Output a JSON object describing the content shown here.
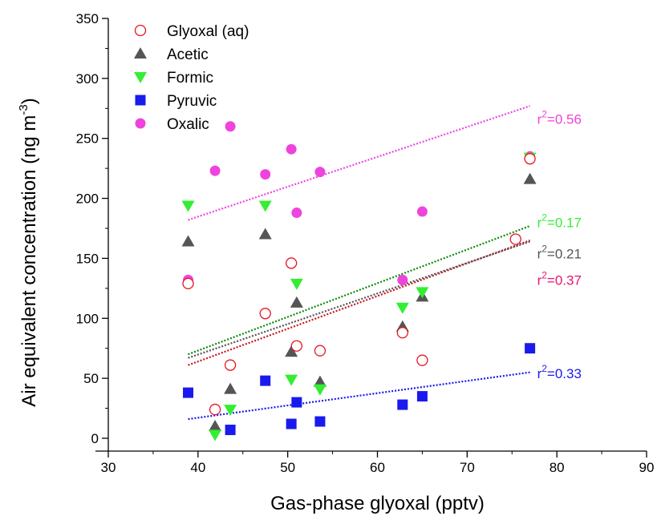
{
  "chart_data": {
    "type": "scatter",
    "xlabel": "Gas-phase glyoxal (pptv)",
    "ylabel": "Air equivalent concentration (ng m",
    "ylabel_sup": "-3",
    "ylabel_tail": ")",
    "xlim": [
      30,
      90
    ],
    "ylim": [
      0,
      350
    ],
    "xticks": [
      30,
      40,
      50,
      60,
      70,
      80,
      90
    ],
    "yticks": [
      0,
      50,
      100,
      150,
      200,
      250,
      300,
      350
    ],
    "grid": false,
    "legend_position": "top-left",
    "series": [
      {
        "name": "Glyoxal (aq)",
        "marker": "open-circle",
        "color": "#e8141e",
        "x": [
          38.9,
          41.9,
          43.6,
          47.5,
          50.4,
          51.0,
          53.6,
          62.8,
          65.0,
          75.4,
          77.0
        ],
        "y": [
          129,
          24,
          61,
          104,
          146,
          77,
          73,
          88,
          65,
          166,
          233
        ],
        "fit": {
          "x": [
            38.9,
            77.0
          ],
          "y": [
            61,
            165
          ],
          "color": "#c8141e",
          "r2_prefix": "r",
          "r2_sup": "2",
          "r2_text": "=0.37",
          "label_color": "#e8146e",
          "label_x": 77.8,
          "label_y": 128
        }
      },
      {
        "name": "Acetic",
        "marker": "triangle-up",
        "color": "#555555",
        "x": [
          38.9,
          41.9,
          43.6,
          47.5,
          50.4,
          51.0,
          53.6,
          62.8,
          65.0,
          77.0
        ],
        "y": [
          164,
          10,
          41,
          170,
          72,
          113,
          47,
          93,
          118,
          216
        ],
        "fit": {
          "x": [
            38.9,
            77.0
          ],
          "y": [
            67,
            164
          ],
          "color": "#555555",
          "r2_prefix": "r",
          "r2_sup": "2",
          "r2_text": "=0.21",
          "label_color": "#555555",
          "label_x": 77.8,
          "label_y": 150
        }
      },
      {
        "name": "Formic",
        "marker": "triangle-down",
        "color": "#33ee33",
        "x": [
          38.9,
          41.9,
          43.6,
          47.5,
          50.4,
          51.0,
          53.6,
          62.8,
          65.0,
          77.0
        ],
        "y": [
          194,
          3,
          24,
          194,
          49,
          129,
          41,
          109,
          122,
          234
        ],
        "fit": {
          "x": [
            38.9,
            77.0
          ],
          "y": [
            70,
            177
          ],
          "color": "#0a8a0a",
          "r2_prefix": "r",
          "r2_sup": "2",
          "r2_text": "=0.17",
          "label_color": "#33ee33",
          "label_x": 77.8,
          "label_y": 176
        }
      },
      {
        "name": "Pyruvic",
        "marker": "filled-square",
        "color": "#1a1aee",
        "x": [
          38.9,
          43.6,
          47.5,
          50.4,
          51.0,
          53.6,
          62.8,
          65.0,
          77.0
        ],
        "y": [
          38,
          7,
          48,
          12,
          30,
          14,
          28,
          35,
          75
        ],
        "fit": {
          "x": [
            38.9,
            77.0
          ],
          "y": [
            16,
            55
          ],
          "color": "#1a1aee",
          "r2_prefix": "r",
          "r2_sup": "2",
          "r2_text": "=0.33",
          "label_color": "#1a1aee",
          "label_x": 77.8,
          "label_y": 50
        }
      },
      {
        "name": "Oxalic",
        "marker": "filled-circle",
        "color": "#ee44dd",
        "x": [
          38.9,
          41.9,
          43.6,
          47.5,
          50.4,
          51.0,
          53.6,
          62.8,
          65.0,
          77.0
        ],
        "y": [
          132,
          223,
          260,
          220,
          241,
          188,
          222,
          132,
          189,
          235
        ],
        "fit": {
          "x": [
            38.9,
            77.0
          ],
          "y": [
            182,
            277
          ],
          "color": "#ee44dd",
          "r2_prefix": "r",
          "r2_sup": "2",
          "r2_text": "=0.56",
          "label_color": "#ee44dd",
          "label_x": 77.8,
          "label_y": 262
        }
      }
    ]
  }
}
